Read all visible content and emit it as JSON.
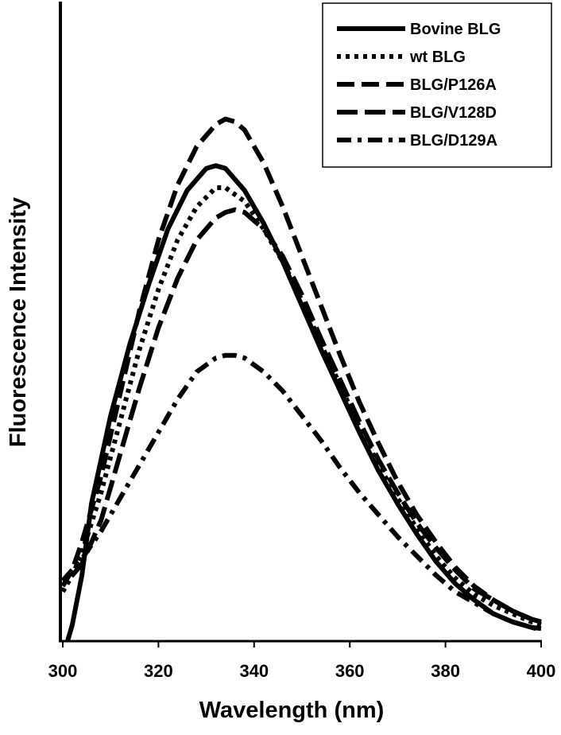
{
  "chart_data": {
    "type": "line",
    "title": "",
    "xlabel": "Wavelength (nm)",
    "ylabel": "Fluorescence Intensity",
    "xlim": [
      300,
      400
    ],
    "ylim": [
      0,
      100
    ],
    "xticks": [
      "300",
      "320",
      "340",
      "360",
      "380",
      "400"
    ],
    "grid": false,
    "legend_position": "top-right",
    "series": [
      {
        "name": "Bovine BLG",
        "dash": "solid",
        "x": [
          301,
          302,
          304,
          306,
          310,
          314,
          318,
          322,
          326,
          330,
          332,
          334,
          338,
          342,
          346,
          350,
          354,
          358,
          362,
          366,
          370,
          374,
          378,
          382,
          386,
          390,
          394,
          398,
          400
        ],
        "y": [
          0,
          3,
          12,
          25,
          41,
          54,
          65,
          75,
          82,
          86,
          86.5,
          86,
          82,
          76,
          69,
          61,
          53,
          45.5,
          38,
          31,
          25,
          19.5,
          14.5,
          10.5,
          7.5,
          5,
          3.5,
          2.5,
          2.3
        ]
      },
      {
        "name": "wt BLG",
        "dash": "dotted",
        "x": [
          300,
          302,
          304,
          308,
          312,
          316,
          320,
          324,
          328,
          332,
          334,
          338,
          342,
          346,
          350,
          354,
          358,
          362,
          366,
          370,
          374,
          378,
          382,
          386,
          390,
          394,
          398,
          400
        ],
        "y": [
          9,
          12,
          16,
          27,
          40,
          53,
          64,
          73,
          79,
          82.5,
          82.5,
          80,
          75,
          69,
          62,
          54,
          46.5,
          39,
          32,
          26,
          20.5,
          15.5,
          11.5,
          8.5,
          6.5,
          5,
          3.5,
          3
        ]
      },
      {
        "name": "BLG/P126A",
        "dash": "dashed",
        "x": [
          300,
          302,
          304,
          308,
          312,
          316,
          320,
          324,
          328,
          332,
          334,
          336,
          338,
          342,
          346,
          350,
          354,
          358,
          362,
          366,
          370,
          374,
          378,
          382,
          386,
          390,
          394,
          398,
          400
        ],
        "y": [
          10,
          13,
          18,
          30,
          45,
          60,
          73,
          83,
          90,
          94,
          95,
          94.5,
          93,
          87,
          79,
          70,
          61,
          52,
          43.5,
          36,
          29,
          23,
          18,
          13.5,
          10,
          7.5,
          5.5,
          4,
          3.5
        ]
      },
      {
        "name": "BLG/V128D",
        "dash": "long-dash",
        "x": [
          302,
          304,
          308,
          312,
          316,
          320,
          324,
          328,
          332,
          334,
          336,
          338,
          342,
          346,
          350,
          354,
          358,
          362,
          366,
          370,
          374,
          378,
          382,
          386,
          390,
          394,
          398,
          400
        ],
        "y": [
          12,
          14,
          22,
          34,
          46,
          57,
          66,
          73,
          77,
          78,
          78.5,
          78,
          75,
          70,
          63,
          55,
          47.5,
          40,
          33,
          27,
          21.5,
          17,
          13,
          9.5,
          7.5,
          5.5,
          4,
          3.5
        ]
      },
      {
        "name": "BLG/D129A",
        "dash": "dash-dot",
        "x": [
          300,
          302,
          304,
          308,
          312,
          316,
          320,
          324,
          328,
          332,
          334,
          336,
          338,
          342,
          346,
          350,
          354,
          358,
          362,
          366,
          370,
          374,
          378,
          382,
          386,
          390,
          394,
          398,
          400
        ],
        "y": [
          11,
          13,
          15,
          20,
          26,
          32,
          38,
          44,
          49,
          51.5,
          52,
          52,
          51.5,
          49,
          45.5,
          41,
          36.5,
          31.5,
          27,
          23,
          19,
          15.5,
          12,
          9,
          7,
          5,
          3.5,
          2.5,
          2
        ]
      }
    ]
  }
}
